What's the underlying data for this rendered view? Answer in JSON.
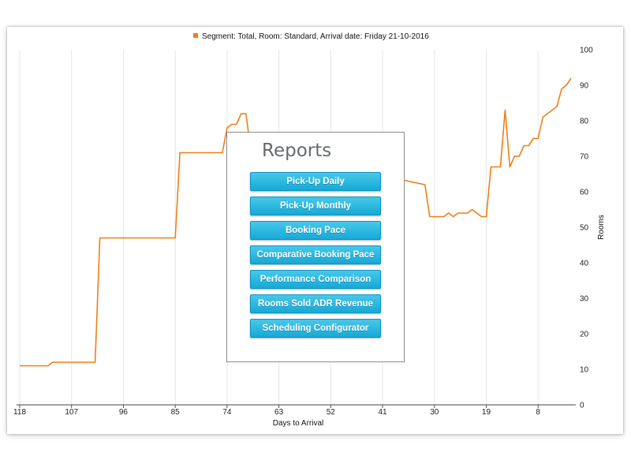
{
  "chart_data": {
    "type": "line",
    "legend": {
      "label": "Segment: Total, Room: Standard, Arrival date: Friday 21-10-2016",
      "color": "#f07f16",
      "placement": "top-center"
    },
    "xlabel": "Days to Arrival",
    "ylabel": "Rooms",
    "x_ticks": [
      118,
      107,
      96,
      85,
      74,
      63,
      52,
      41,
      30,
      19,
      8
    ],
    "y_ticks": [
      0,
      10,
      20,
      30,
      40,
      50,
      60,
      70,
      80,
      90,
      100
    ],
    "xlim": [
      118,
      0
    ],
    "ylim": [
      0,
      100
    ],
    "y_axis_position": "right",
    "grid": true,
    "series": [
      {
        "color": "#f07f16",
        "x": [
          118,
          112,
          111,
          102,
          101,
          98,
          97,
          85,
          84,
          75,
          74,
          73,
          72,
          71,
          70,
          69,
          68,
          32,
          31,
          29,
          28,
          27,
          26,
          25,
          23,
          22,
          20,
          19,
          18,
          17,
          16,
          15,
          14,
          13,
          12,
          11,
          10,
          9,
          8,
          7,
          6,
          5,
          4,
          3,
          2,
          1
        ],
        "y": [
          11,
          11,
          12,
          12,
          47,
          47,
          47,
          47,
          71,
          71,
          78,
          79,
          79,
          82,
          82,
          72,
          72,
          62,
          53,
          53,
          53,
          54,
          53,
          54,
          54,
          55,
          53,
          53,
          67,
          67,
          67,
          83,
          67,
          70,
          70,
          73,
          73,
          75,
          75,
          81,
          82,
          83,
          84,
          89,
          90,
          92
        ]
      }
    ]
  },
  "reports_panel": {
    "title": "Reports",
    "buttons": [
      "Pick-Up Daily",
      "Pick-Up Monthly",
      "Booking Pace",
      "Comparative Booking Pace",
      "Performance Comparison",
      "Rooms Sold ADR Revenue",
      "Scheduling Configurator"
    ]
  }
}
